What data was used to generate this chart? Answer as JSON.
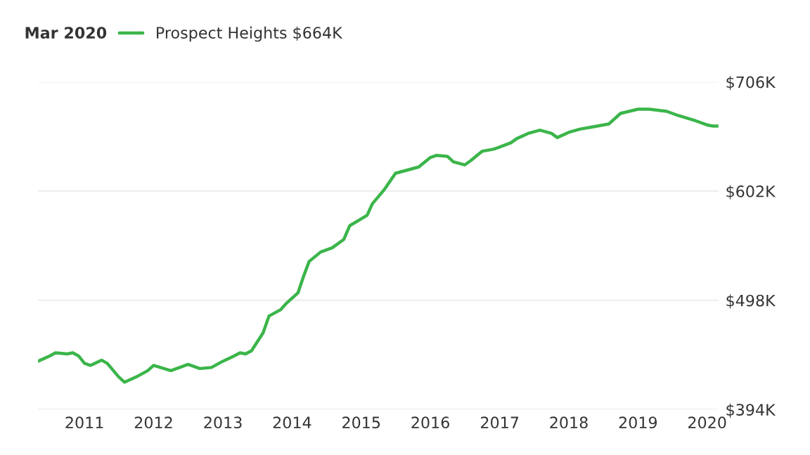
{
  "chart_data": {
    "type": "line",
    "title": "Mar 2020",
    "x": [
      "2010-05",
      "2010-07",
      "2010-08",
      "2010-10",
      "2010-11",
      "2010-12",
      "2011-01",
      "2011-02",
      "2011-04",
      "2011-05",
      "2011-07",
      "2011-08",
      "2011-10",
      "2011-12",
      "2012-01",
      "2012-04",
      "2012-07",
      "2012-09",
      "2012-11",
      "2013-01",
      "2013-03",
      "2013-04",
      "2013-05",
      "2013-06",
      "2013-08",
      "2013-09",
      "2013-11",
      "2013-12",
      "2014-02",
      "2014-03",
      "2014-04",
      "2014-06",
      "2014-08",
      "2014-10",
      "2014-11",
      "2015-02",
      "2015-03",
      "2015-05",
      "2015-07",
      "2015-09",
      "2015-11",
      "2016-01",
      "2016-02",
      "2016-04",
      "2016-05",
      "2016-07",
      "2016-08",
      "2016-10",
      "2016-12",
      "2017-01",
      "2017-03",
      "2017-04",
      "2017-06",
      "2017-08",
      "2017-10",
      "2017-11",
      "2018-01",
      "2018-03",
      "2018-05",
      "2018-08",
      "2018-10",
      "2019-01",
      "2019-03",
      "2019-06",
      "2019-08",
      "2019-11",
      "2020-01",
      "2020-02",
      "2020-03"
    ],
    "series": [
      {
        "name": "Prospect Heights $664K",
        "color": "#3bb54a",
        "values": [
          440,
          445,
          448,
          447,
          448,
          445,
          438,
          436,
          441,
          438,
          425,
          420,
          425,
          431,
          436,
          431,
          437,
          433,
          434,
          440,
          445,
          448,
          447,
          450,
          467,
          483,
          489,
          495,
          505,
          520,
          535,
          544,
          548,
          556,
          569,
          579,
          590,
          603,
          619,
          622,
          625,
          634,
          636,
          635,
          630,
          627,
          631,
          640,
          642,
          644,
          648,
          652,
          657,
          660,
          657,
          653,
          658,
          661,
          663,
          666,
          676,
          680,
          680,
          678,
          674,
          669,
          665,
          664,
          664
        ]
      }
    ],
    "xlim": [
      "2010-05",
      "2020-03"
    ],
    "xticks": [
      {
        "value": "2011-01",
        "label": "2011"
      },
      {
        "value": "2012-01",
        "label": "2012"
      },
      {
        "value": "2013-01",
        "label": "2013"
      },
      {
        "value": "2014-01",
        "label": "2014"
      },
      {
        "value": "2015-01",
        "label": "2015"
      },
      {
        "value": "2016-01",
        "label": "2016"
      },
      {
        "value": "2017-01",
        "label": "2017"
      },
      {
        "value": "2018-01",
        "label": "2018"
      },
      {
        "value": "2019-01",
        "label": "2019"
      },
      {
        "value": "2020-01",
        "label": "2020"
      }
    ],
    "ylim": [
      394,
      706
    ],
    "yticks": [
      {
        "value": 394,
        "label": "$394K"
      },
      {
        "value": 498,
        "label": "$498K"
      },
      {
        "value": 602,
        "label": "$602K"
      },
      {
        "value": 706,
        "label": "$706K"
      }
    ],
    "grid": "y",
    "legend": "top left",
    "marker": "none",
    "line_style": "solid"
  }
}
